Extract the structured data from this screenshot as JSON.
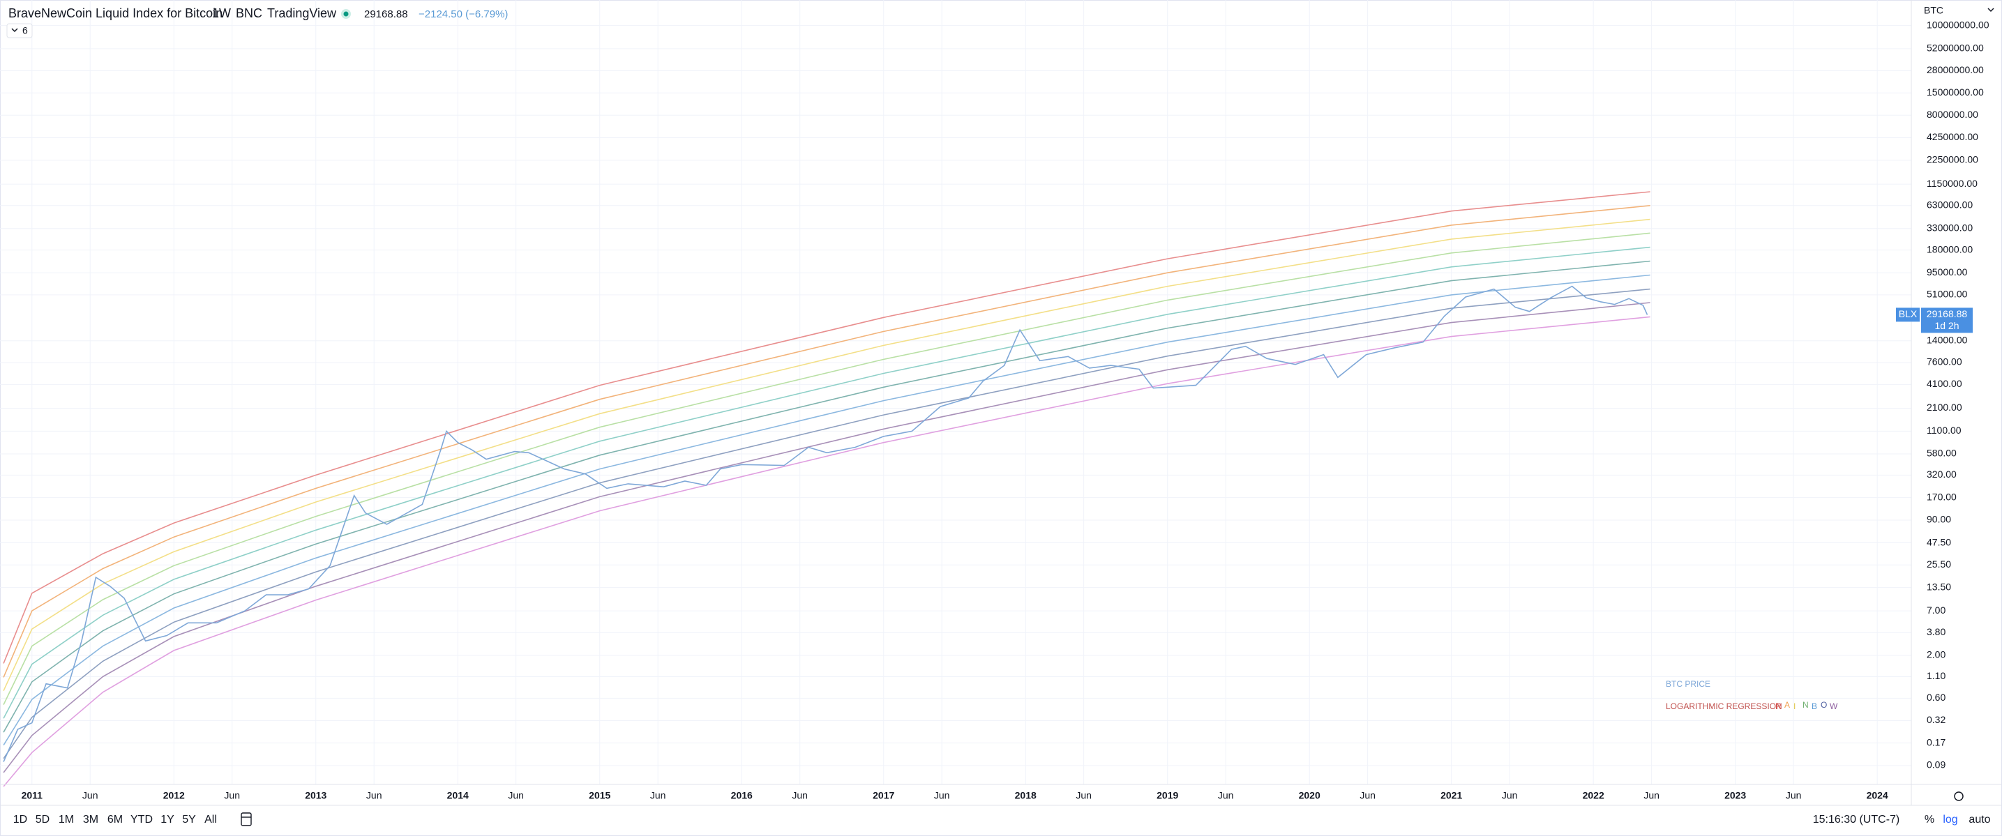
{
  "header": {
    "title": "BraveNewCoin Liquid Index for Bitcoin",
    "interval": "1W",
    "exchange": "BNC",
    "source": "TradingView",
    "change": "−2124.50 (−6.79%)",
    "indicators": "6",
    "scale_currency": "BTC"
  },
  "toolbar": {
    "ranges": [
      "1D",
      "5D",
      "1M",
      "3M",
      "6M",
      "YTD",
      "1Y",
      "5Y",
      "All"
    ],
    "time": "15:16:30 (UTC-7)",
    "percent": "%",
    "log": "log",
    "auto": "auto"
  },
  "chart_data": {
    "type": "line",
    "log": true,
    "grid": true,
    "xlim": [
      2010.775,
      2024.24
    ],
    "ylim": [
      0.053,
      205000000
    ],
    "xticks": [
      2011,
      {
        "value": 2011.41,
        "label": "Jun"
      },
      2012,
      {
        "value": 2012.41,
        "label": "Jun"
      },
      2013,
      {
        "value": 2013.41,
        "label": "Jun"
      },
      2014,
      {
        "value": 2014.41,
        "label": "Jun"
      },
      2015,
      {
        "value": 2015.41,
        "label": "Jun"
      },
      2016,
      {
        "value": 2016.41,
        "label": "Jun"
      },
      2017,
      {
        "value": 2017.41,
        "label": "Jun"
      },
      2018,
      {
        "value": 2018.41,
        "label": "Jun"
      },
      2019,
      {
        "value": 2019.41,
        "label": "Jun"
      },
      2020,
      {
        "value": 2020.41,
        "label": "Jun"
      },
      2021,
      {
        "value": 2021.41,
        "label": "Jun"
      },
      2022,
      {
        "value": 2022.41,
        "label": "Jun"
      },
      2023,
      {
        "value": 2023.41,
        "label": "Jun"
      },
      2024
    ],
    "yticks": [
      {
        "value": 100000000,
        "label": "100000000.00"
      },
      {
        "value": 52000000,
        "label": "52000000.00"
      },
      {
        "value": 28000000,
        "label": "28000000.00"
      },
      {
        "value": 15000000,
        "label": "15000000.00"
      },
      {
        "value": 8000000,
        "label": "8000000.00"
      },
      {
        "value": 4250000,
        "label": "4250000.00"
      },
      {
        "value": 2250000,
        "label": "2250000.00"
      },
      {
        "value": 1150000,
        "label": "1150000.00"
      },
      {
        "value": 630000,
        "label": "630000.00"
      },
      {
        "value": 330000,
        "label": "330000.00"
      },
      {
        "value": 180000,
        "label": "180000.00"
      },
      {
        "value": 95000,
        "label": "95000.00"
      },
      {
        "value": 51000,
        "label": "51000.00"
      },
      {
        "value": 14000,
        "label": "14000.00"
      },
      {
        "value": 7600,
        "label": "7600.00"
      },
      {
        "value": 4100,
        "label": "4100.00"
      },
      {
        "value": 2100,
        "label": "2100.00"
      },
      {
        "value": 1100,
        "label": "1100.00"
      },
      {
        "value": 580,
        "label": "580.00"
      },
      {
        "value": 320,
        "label": "320.00"
      },
      {
        "value": 170,
        "label": "170.00"
      },
      {
        "value": 90,
        "label": "90.00"
      },
      {
        "value": 47.5,
        "label": "47.50"
      },
      {
        "value": 25.5,
        "label": "25.50"
      },
      {
        "value": 13.5,
        "label": "13.50"
      },
      {
        "value": 7,
        "label": "7.00"
      },
      {
        "value": 3.8,
        "label": "3.80"
      },
      {
        "value": 2,
        "label": "2.00"
      },
      {
        "value": 1.1,
        "label": "1.10"
      },
      {
        "value": 0.6,
        "label": "0.60"
      },
      {
        "value": 0.32,
        "label": "0.32"
      },
      {
        "value": 0.17,
        "label": "0.17"
      },
      {
        "value": 0.09,
        "label": "0.09"
      }
    ],
    "series": [
      {
        "name": "BTC PRICE",
        "color": "#7fa8d8",
        "x": [
          2010.8,
          2010.9,
          2011.0,
          2011.1,
          2011.25,
          2011.35,
          2011.45,
          2011.55,
          2011.65,
          2011.8,
          2011.95,
          2012.1,
          2012.3,
          2012.5,
          2012.65,
          2012.8,
          2012.95,
          2013.1,
          2013.27,
          2013.35,
          2013.5,
          2013.6,
          2013.75,
          2013.88,
          2013.92,
          2014.0,
          2014.1,
          2014.2,
          2014.4,
          2014.5,
          2014.6,
          2014.75,
          2014.9,
          2015.05,
          2015.2,
          2015.45,
          2015.6,
          2015.75,
          2015.85,
          2016.0,
          2016.3,
          2016.47,
          2016.6,
          2016.8,
          2017.0,
          2017.2,
          2017.4,
          2017.6,
          2017.7,
          2017.85,
          2017.96,
          2018.1,
          2018.3,
          2018.45,
          2018.6,
          2018.8,
          2018.9,
          2019.0,
          2019.2,
          2019.45,
          2019.55,
          2019.7,
          2019.9,
          2020.1,
          2020.2,
          2020.4,
          2020.6,
          2020.8,
          2020.95,
          2021.1,
          2021.3,
          2021.45,
          2021.55,
          2021.7,
          2021.85,
          2021.95,
          2022.05,
          2022.15,
          2022.25,
          2022.35,
          2022.38
        ],
        "values": [
          0.1,
          0.25,
          0.3,
          0.9,
          0.8,
          3,
          18,
          14,
          10,
          3,
          3.5,
          5,
          5,
          7,
          11,
          11,
          13,
          25,
          180,
          110,
          80,
          100,
          140,
          650,
          1100,
          800,
          650,
          500,
          620,
          600,
          500,
          380,
          330,
          220,
          250,
          230,
          270,
          240,
          380,
          430,
          420,
          700,
          600,
          700,
          950,
          1100,
          2200,
          2800,
          4500,
          7000,
          19000,
          8000,
          9000,
          6500,
          7000,
          6300,
          3700,
          3800,
          4000,
          11000,
          12000,
          8500,
          7200,
          9500,
          5000,
          9500,
          11500,
          13500,
          28000,
          48000,
          60000,
          36000,
          32000,
          47000,
          65000,
          47000,
          42000,
          39000,
          46000,
          38000,
          29168.88
        ]
      }
    ],
    "price_tag": {
      "symbol": "BLX",
      "countdown": "1d 2h",
      "color": "#4a90e2"
    },
    "regression": {
      "name": "LOGARITHMIC REGRESSION",
      "color": "#c0504d",
      "letters": [
        {
          "text": "R",
          "color": "#d9534f"
        },
        {
          "text": "A",
          "color": "#f0a050"
        },
        {
          "text": "I",
          "color": "#e0c850"
        },
        {
          "text": "N",
          "color": "#70b070"
        },
        {
          "text": "B",
          "color": "#5b9bd5"
        },
        {
          "text": "O",
          "color": "#5060a0"
        },
        {
          "text": "W",
          "color": "#9060a0"
        }
      ],
      "x": [
        2010.8,
        2011.0,
        2011.5,
        2012.0,
        2013.0,
        2015.0,
        2017.0,
        2019.0,
        2021.0,
        2022.4
      ],
      "bands": [
        {
          "color": "#e88e8e",
          "values": [
            1.6,
            11.5,
            35,
            83,
            320,
            4000,
            27000,
            141000,
            540000,
            930000
          ]
        },
        {
          "color": "#f2b37a",
          "values": [
            1.08,
            7.0,
            23,
            56,
            220,
            2700,
            18200,
            95000,
            363000,
            630000
          ]
        },
        {
          "color": "#f3df88",
          "values": [
            0.74,
            4.2,
            15,
            37,
            150,
            1800,
            12300,
            65000,
            245000,
            427000
          ]
        },
        {
          "color": "#b9e0a5",
          "values": [
            0.5,
            2.6,
            9.6,
            25,
            100,
            1230,
            8300,
            44000,
            166000,
            290000
          ]
        },
        {
          "color": "#8fd0c8",
          "values": [
            0.34,
            1.56,
            6.2,
            17,
            68,
            830,
            5600,
            29500,
            112000,
            195000
          ]
        },
        {
          "color": "#7fb3ae",
          "values": [
            0.23,
            0.95,
            4.0,
            11.3,
            46,
            560,
            3800,
            20000,
            76000,
            132000
          ]
        },
        {
          "color": "#8cb8e0",
          "values": [
            0.16,
            0.58,
            2.6,
            7.6,
            31,
            380,
            2600,
            13500,
            51000,
            89000
          ]
        },
        {
          "color": "#8ea0c0",
          "values": [
            0.11,
            0.35,
            1.7,
            5.1,
            21,
            257,
            1740,
            9100,
            35000,
            60000
          ]
        },
        {
          "color": "#a890b8",
          "values": [
            0.074,
            0.21,
            1.1,
            3.4,
            14,
            174,
            1170,
            6200,
            23400,
            41000
          ]
        },
        {
          "color": "#e0a0e0",
          "values": [
            0.05,
            0.13,
            0.71,
            2.3,
            9.5,
            117,
            800,
            4200,
            15800,
            27500
          ]
        }
      ]
    }
  }
}
